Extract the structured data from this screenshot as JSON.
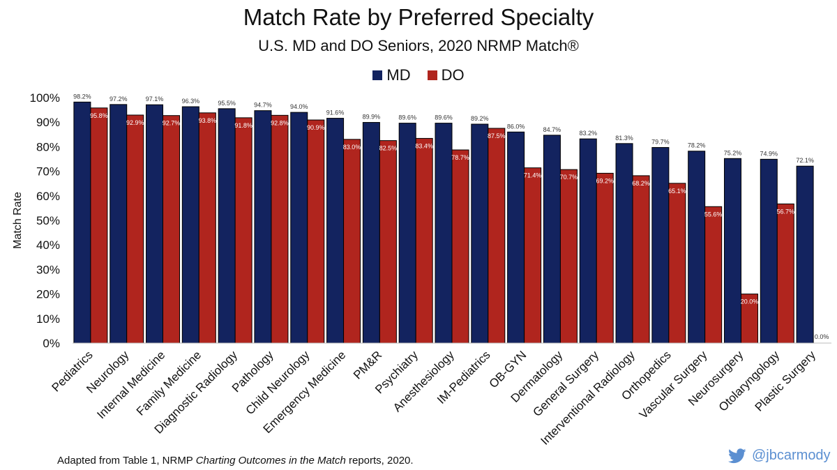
{
  "header": {
    "title": "Match Rate by Preferred Specialty",
    "subtitle": "U.S. MD and DO Seniors, 2020 NRMP Match®"
  },
  "footer": {
    "prefix": "Adapted from Table 1, NRMP ",
    "italic": "Charting Outcomes in the Match",
    "suffix": " reports, 2020."
  },
  "social": {
    "handle": "@jbcarmody",
    "icon": "twitter-bird-icon",
    "color": "#5b8fd1"
  },
  "colors": {
    "md": "#13235f",
    "do": "#b0251e"
  },
  "chart_data": {
    "type": "bar",
    "title": "Match Rate by Preferred Specialty",
    "subtitle": "U.S. MD and DO Seniors, 2020 NRMP Match®",
    "xlabel": "",
    "ylabel": "Match Rate",
    "ylim": [
      0,
      100
    ],
    "yticks": [
      "0%",
      "10%",
      "20%",
      "30%",
      "40%",
      "50%",
      "60%",
      "70%",
      "80%",
      "90%",
      "100%"
    ],
    "legend": "top-center",
    "grid": false,
    "categories": [
      "Pediatrics",
      "Neurology",
      "Internal Medicine",
      "Family Medicine",
      "Diagnostic Radiology",
      "Pathology",
      "Child Neurology",
      "Emergency Medicine",
      "PM&R",
      "Psychiatry",
      "Anesthesiology",
      "IM-Pediatrics",
      "OB-GYN",
      "Dermatology",
      "General Surgery",
      "Interventional Radiology",
      "Orthopedics",
      "Vascular Surgery",
      "Neurosurgery",
      "Otolaryngology",
      "Plastic Surgery"
    ],
    "series": [
      {
        "name": "MD",
        "values": [
          98.2,
          97.2,
          97.1,
          96.3,
          95.5,
          94.7,
          94.0,
          91.6,
          89.9,
          89.6,
          89.6,
          89.2,
          86.0,
          84.7,
          83.2,
          81.3,
          79.7,
          78.2,
          75.2,
          74.9,
          72.1
        ],
        "labels": [
          "98.2%",
          "97.2%",
          "97.1%",
          "96.3%",
          "95.5%",
          "94.7%",
          "94.0%",
          "91.6%",
          "89.9%",
          "89.6%",
          "89.6%",
          "89.2%",
          "86.0%",
          "84.7%",
          "83.2%",
          "81.3%",
          "79.7%",
          "78.2%",
          "75.2%",
          "74.9%",
          "72.1%"
        ]
      },
      {
        "name": "DO",
        "values": [
          95.8,
          92.9,
          92.7,
          93.8,
          91.8,
          92.8,
          90.9,
          83.0,
          82.5,
          83.4,
          78.7,
          87.5,
          71.4,
          70.7,
          69.2,
          68.2,
          65.1,
          55.6,
          20.0,
          56.7,
          0.0
        ],
        "labels": [
          "95.8%",
          "92.9%",
          "92.7%",
          "93.8%",
          "91.8%",
          "92.8%",
          "90.9%",
          "83.0%",
          "82.5%",
          "83.4%",
          "78.7%",
          "87.5%",
          "71.4%",
          "70.7%",
          "69.2%",
          "68.2%",
          "65.1%",
          "55.6%",
          "20.0%",
          "56.7%",
          "0.0%"
        ]
      }
    ]
  }
}
